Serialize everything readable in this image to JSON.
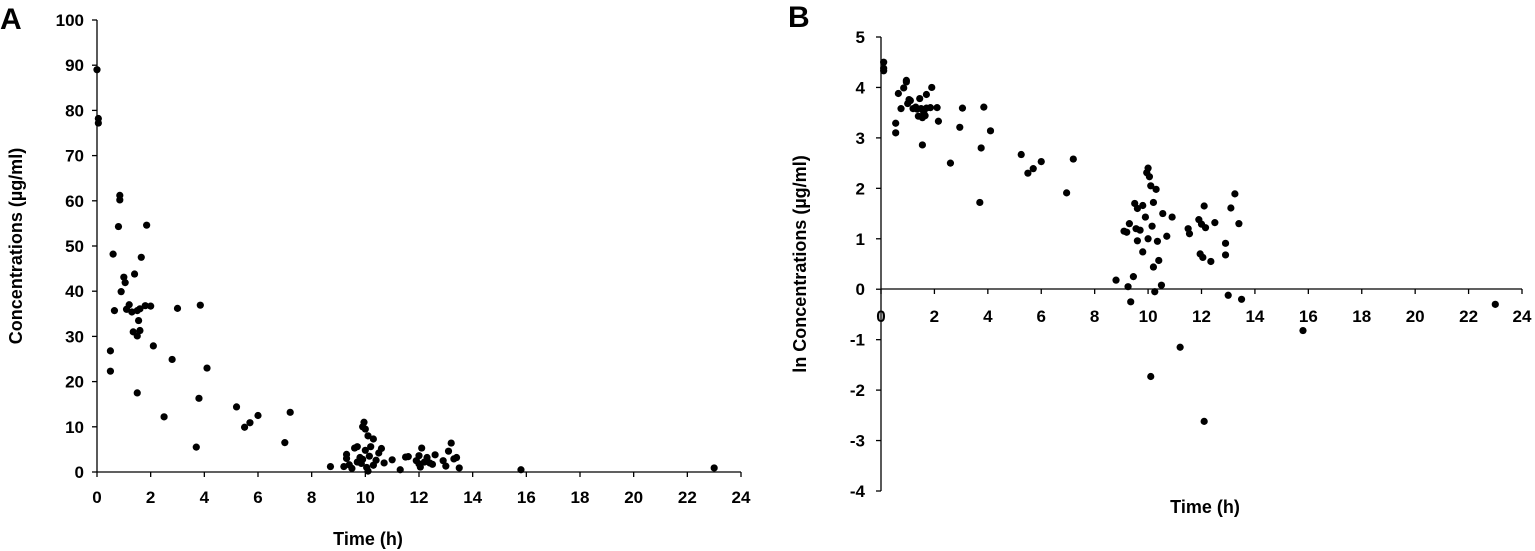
{
  "chart_data": [
    {
      "type": "scatter",
      "panel_label": "A",
      "title": "",
      "xlabel": "Time (h)",
      "ylabel": "Concentrations (µg/ml)",
      "xlim": [
        0,
        24
      ],
      "ylim": [
        0,
        100
      ],
      "xticks": [
        0,
        2,
        4,
        6,
        8,
        10,
        12,
        14,
        16,
        18,
        20,
        22,
        24
      ],
      "yticks": [
        0,
        10,
        20,
        30,
        40,
        50,
        60,
        70,
        80,
        90,
        100
      ],
      "grid": false,
      "marker_color": "#000000",
      "points": [
        [
          0.0,
          89.0
        ],
        [
          0.05,
          78.2
        ],
        [
          0.05,
          77.2
        ],
        [
          0.5,
          26.8
        ],
        [
          0.5,
          22.3
        ],
        [
          0.6,
          48.2
        ],
        [
          0.65,
          35.7
        ],
        [
          0.8,
          54.3
        ],
        [
          0.85,
          61.2
        ],
        [
          0.85,
          60.2
        ],
        [
          0.9,
          39.9
        ],
        [
          1.0,
          43.1
        ],
        [
          1.05,
          41.9
        ],
        [
          1.1,
          36.0
        ],
        [
          1.2,
          37.0
        ],
        [
          1.3,
          35.4
        ],
        [
          1.35,
          31.0
        ],
        [
          1.4,
          43.8
        ],
        [
          1.5,
          35.7
        ],
        [
          1.5,
          30.1
        ],
        [
          1.5,
          17.5
        ],
        [
          1.55,
          33.5
        ],
        [
          1.6,
          31.3
        ],
        [
          1.6,
          36.1
        ],
        [
          1.65,
          47.5
        ],
        [
          1.8,
          36.8
        ],
        [
          1.85,
          54.6
        ],
        [
          2.0,
          36.7
        ],
        [
          2.1,
          27.9
        ],
        [
          2.5,
          12.2
        ],
        [
          2.8,
          24.9
        ],
        [
          3.0,
          36.2
        ],
        [
          3.7,
          5.5
        ],
        [
          3.8,
          16.3
        ],
        [
          3.85,
          36.9
        ],
        [
          4.1,
          23.0
        ],
        [
          5.2,
          14.4
        ],
        [
          5.5,
          9.9
        ],
        [
          5.7,
          10.9
        ],
        [
          6.0,
          12.5
        ],
        [
          7.0,
          6.5
        ],
        [
          7.2,
          13.2
        ],
        [
          8.7,
          1.2
        ],
        [
          9.2,
          1.2
        ],
        [
          9.3,
          3.0
        ],
        [
          9.3,
          3.9
        ],
        [
          9.4,
          1.6
        ],
        [
          9.5,
          0.8
        ],
        [
          9.6,
          5.3
        ],
        [
          9.7,
          2.2
        ],
        [
          9.7,
          5.6
        ],
        [
          9.8,
          3.2
        ],
        [
          9.85,
          1.9
        ],
        [
          9.9,
          2.8
        ],
        [
          9.9,
          10.0
        ],
        [
          9.95,
          11.0
        ],
        [
          10.0,
          9.5
        ],
        [
          10.0,
          4.8
        ],
        [
          10.05,
          1.0
        ],
        [
          10.1,
          0.2
        ],
        [
          10.1,
          8.0
        ],
        [
          10.15,
          3.5
        ],
        [
          10.2,
          5.6
        ],
        [
          10.3,
          7.3
        ],
        [
          10.3,
          1.5
        ],
        [
          10.4,
          2.6
        ],
        [
          10.5,
          4.2
        ],
        [
          10.6,
          5.2
        ],
        [
          10.7,
          2.0
        ],
        [
          11.0,
          2.7
        ],
        [
          11.3,
          0.5
        ],
        [
          11.5,
          3.3
        ],
        [
          11.6,
          3.4
        ],
        [
          11.9,
          2.5
        ],
        [
          12.0,
          1.8
        ],
        [
          12.0,
          3.6
        ],
        [
          12.05,
          1.1
        ],
        [
          12.1,
          5.3
        ],
        [
          12.2,
          2.2
        ],
        [
          12.3,
          3.2
        ],
        [
          12.4,
          2.0
        ],
        [
          12.5,
          1.7
        ],
        [
          12.6,
          3.8
        ],
        [
          12.9,
          2.5
        ],
        [
          13.0,
          1.3
        ],
        [
          13.1,
          4.6
        ],
        [
          13.2,
          6.4
        ],
        [
          13.3,
          2.9
        ],
        [
          13.4,
          3.2
        ],
        [
          13.5,
          0.9
        ],
        [
          15.8,
          0.5
        ],
        [
          23.0,
          0.9
        ]
      ]
    },
    {
      "type": "scatter",
      "panel_label": "B",
      "title": "",
      "xlabel": "Time (h)",
      "ylabel": "ln Concentrations (µg/ml)",
      "xlim": [
        0,
        24
      ],
      "ylim": [
        -4,
        5
      ],
      "xticks": [
        0,
        2,
        4,
        6,
        8,
        10,
        12,
        14,
        16,
        18,
        20,
        22,
        24
      ],
      "yticks": [
        -4,
        -3,
        -2,
        -1,
        0,
        1,
        2,
        3,
        4,
        5
      ],
      "grid": false,
      "marker_color": "#000000",
      "points": [
        [
          0.1,
          4.5
        ],
        [
          0.1,
          4.38
        ],
        [
          0.1,
          4.33
        ],
        [
          0.55,
          3.29
        ],
        [
          0.55,
          3.1
        ],
        [
          0.65,
          3.88
        ],
        [
          0.75,
          3.58
        ],
        [
          0.85,
          3.99
        ],
        [
          0.95,
          4.11
        ],
        [
          0.95,
          4.14
        ],
        [
          1.0,
          3.68
        ],
        [
          1.05,
          3.76
        ],
        [
          1.1,
          3.74
        ],
        [
          1.2,
          3.58
        ],
        [
          1.3,
          3.61
        ],
        [
          1.35,
          3.57
        ],
        [
          1.4,
          3.43
        ],
        [
          1.45,
          3.78
        ],
        [
          1.5,
          3.58
        ],
        [
          1.55,
          3.4
        ],
        [
          1.55,
          2.86
        ],
        [
          1.6,
          3.51
        ],
        [
          1.65,
          3.44
        ],
        [
          1.7,
          3.59
        ],
        [
          1.7,
          3.86
        ],
        [
          1.85,
          3.6
        ],
        [
          1.9,
          4.0
        ],
        [
          2.1,
          3.6
        ],
        [
          2.15,
          3.33
        ],
        [
          2.6,
          2.5
        ],
        [
          2.95,
          3.21
        ],
        [
          3.05,
          3.59
        ],
        [
          3.7,
          1.72
        ],
        [
          3.75,
          2.8
        ],
        [
          3.85,
          3.61
        ],
        [
          4.1,
          3.14
        ],
        [
          5.25,
          2.67
        ],
        [
          5.5,
          2.3
        ],
        [
          5.7,
          2.39
        ],
        [
          6.0,
          2.53
        ],
        [
          6.95,
          1.91
        ],
        [
          7.2,
          2.58
        ],
        [
          8.8,
          0.18
        ],
        [
          9.1,
          1.15
        ],
        [
          9.2,
          1.13
        ],
        [
          9.25,
          0.05
        ],
        [
          9.3,
          1.3
        ],
        [
          9.35,
          -0.25
        ],
        [
          9.45,
          0.25
        ],
        [
          9.5,
          1.7
        ],
        [
          9.55,
          1.2
        ],
        [
          9.6,
          0.96
        ],
        [
          9.6,
          1.6
        ],
        [
          9.7,
          1.17
        ],
        [
          9.8,
          0.74
        ],
        [
          9.8,
          1.66
        ],
        [
          9.9,
          1.43
        ],
        [
          9.95,
          2.31
        ],
        [
          10.0,
          1.0
        ],
        [
          10.0,
          2.4
        ],
        [
          10.05,
          2.23
        ],
        [
          10.1,
          -1.73
        ],
        [
          10.1,
          2.05
        ],
        [
          10.15,
          1.25
        ],
        [
          10.2,
          0.44
        ],
        [
          10.2,
          1.72
        ],
        [
          10.25,
          -0.05
        ],
        [
          10.3,
          1.98
        ],
        [
          10.35,
          0.95
        ],
        [
          10.4,
          0.57
        ],
        [
          10.5,
          0.08
        ],
        [
          10.55,
          1.5
        ],
        [
          10.7,
          1.05
        ],
        [
          10.9,
          1.43
        ],
        [
          11.2,
          -1.15
        ],
        [
          11.5,
          1.2
        ],
        [
          11.55,
          1.1
        ],
        [
          11.9,
          1.38
        ],
        [
          11.95,
          0.7
        ],
        [
          12.0,
          1.29
        ],
        [
          12.05,
          0.63
        ],
        [
          12.1,
          1.65
        ],
        [
          12.1,
          -2.62
        ],
        [
          12.15,
          1.22
        ],
        [
          12.35,
          0.55
        ],
        [
          12.5,
          1.32
        ],
        [
          12.9,
          0.91
        ],
        [
          12.9,
          0.68
        ],
        [
          13.0,
          -0.12
        ],
        [
          13.1,
          1.61
        ],
        [
          13.25,
          1.89
        ],
        [
          13.4,
          1.3
        ],
        [
          13.5,
          -0.2
        ],
        [
          15.8,
          -0.82
        ],
        [
          23.0,
          -0.3
        ]
      ]
    }
  ]
}
